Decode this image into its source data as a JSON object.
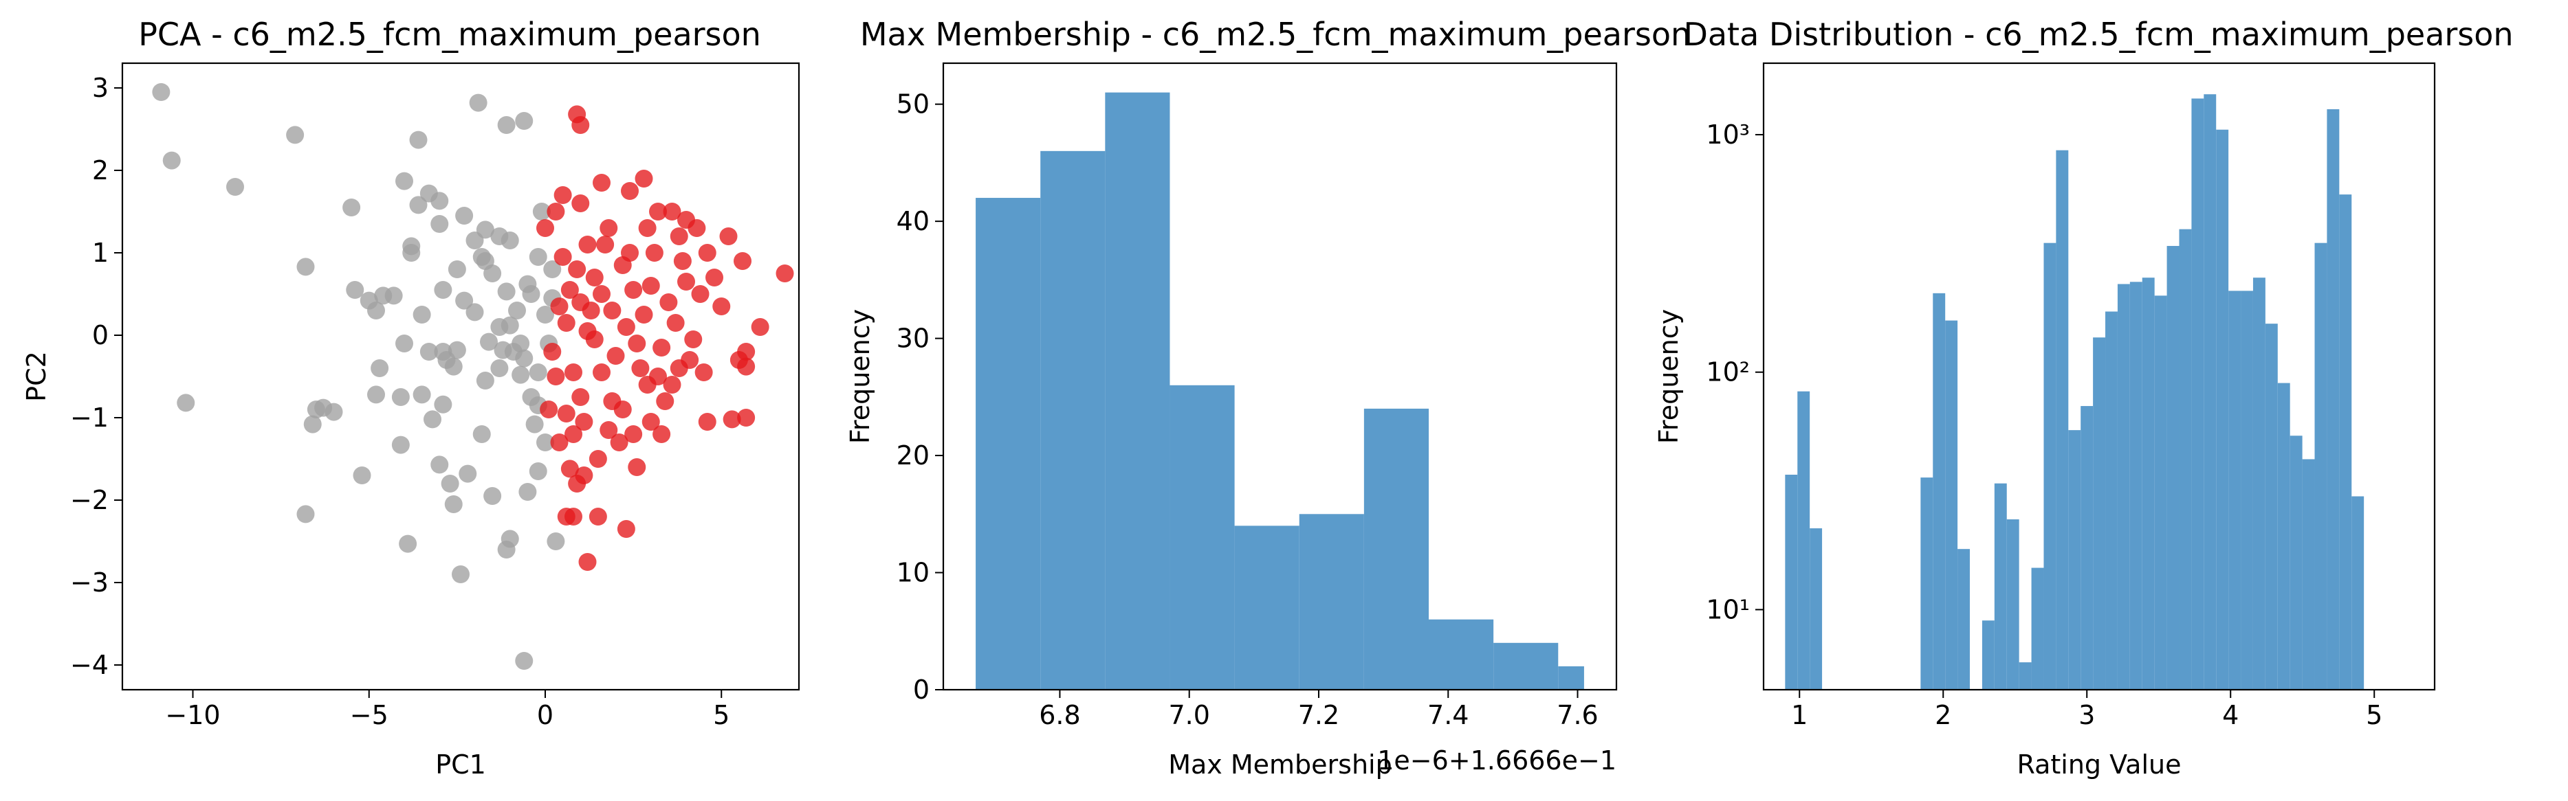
{
  "chart_data": [
    {
      "type": "scatter",
      "title": "PCA - c6_m2.5_fcm_maximum_pearson",
      "xlabel": "PC1",
      "ylabel": "PC2",
      "xlim": [
        -12,
        7.2
      ],
      "ylim": [
        -4.3,
        3.3
      ],
      "xticks": [
        -10,
        -5,
        0,
        5
      ],
      "yticks": [
        -4,
        -3,
        -2,
        -1,
        0,
        1,
        2,
        3
      ],
      "xtick_labels": [
        "−10",
        "−5",
        "0",
        "5"
      ],
      "ytick_labels": [
        "−4",
        "−3",
        "−2",
        "−1",
        "0",
        "1",
        "2",
        "3"
      ],
      "colors": {
        "gray": "#a0a0a0",
        "red": "#e41a1c"
      },
      "series": [
        {
          "color": "gray",
          "points": [
            [
              -10.9,
              2.95
            ],
            [
              -10.6,
              2.12
            ],
            [
              -8.8,
              1.8
            ],
            [
              -7.1,
              2.43
            ],
            [
              -10.2,
              -0.82
            ],
            [
              -6.8,
              0.83
            ],
            [
              -6.6,
              -1.08
            ],
            [
              -6.5,
              -0.9
            ],
            [
              -6.3,
              -0.88
            ],
            [
              -6.0,
              -0.93
            ],
            [
              -6.8,
              -2.17
            ],
            [
              -5.2,
              -1.7
            ],
            [
              -5.5,
              1.55
            ],
            [
              -5.4,
              0.55
            ],
            [
              -5.0,
              0.42
            ],
            [
              -4.8,
              0.3
            ],
            [
              -4.6,
              0.48
            ],
            [
              -4.3,
              0.48
            ],
            [
              -4.7,
              -0.4
            ],
            [
              -4.8,
              -0.72
            ],
            [
              -4.0,
              -0.1
            ],
            [
              -4.1,
              -0.75
            ],
            [
              -4.0,
              1.87
            ],
            [
              -3.8,
              1.08
            ],
            [
              -3.8,
              1.0
            ],
            [
              -3.6,
              1.58
            ],
            [
              -3.6,
              2.37
            ],
            [
              -3.5,
              -0.72
            ],
            [
              -3.5,
              0.25
            ],
            [
              -3.3,
              -0.2
            ],
            [
              -4.1,
              -1.33
            ],
            [
              -3.9,
              -2.53
            ],
            [
              -3.3,
              1.72
            ],
            [
              -3.2,
              -1.02
            ],
            [
              -3.0,
              -1.57
            ],
            [
              -3.0,
              1.35
            ],
            [
              -3.0,
              1.63
            ],
            [
              -2.9,
              -0.2
            ],
            [
              -2.9,
              -0.84
            ],
            [
              -2.9,
              0.55
            ],
            [
              -2.8,
              -0.3
            ],
            [
              -2.7,
              -1.8
            ],
            [
              -2.6,
              -2.05
            ],
            [
              -2.6,
              -0.38
            ],
            [
              -2.5,
              0.8
            ],
            [
              -2.5,
              -0.18
            ],
            [
              -2.4,
              -2.9
            ],
            [
              -2.3,
              0.42
            ],
            [
              -2.3,
              1.45
            ],
            [
              -2.2,
              -1.68
            ],
            [
              -2.0,
              0.28
            ],
            [
              -2.0,
              1.15
            ],
            [
              -1.9,
              2.82
            ],
            [
              -1.8,
              -1.2
            ],
            [
              -1.8,
              0.95
            ],
            [
              -1.7,
              -0.55
            ],
            [
              -1.7,
              0.9
            ],
            [
              -1.7,
              1.28
            ],
            [
              -1.6,
              -0.08
            ],
            [
              -1.5,
              -1.95
            ],
            [
              -1.5,
              0.75
            ],
            [
              -1.3,
              1.2
            ],
            [
              -1.3,
              0.1
            ],
            [
              -1.3,
              -0.4
            ],
            [
              -1.2,
              -0.18
            ],
            [
              -1.1,
              -2.6
            ],
            [
              -1.1,
              0.53
            ],
            [
              -1.1,
              2.55
            ],
            [
              -1.0,
              -2.47
            ],
            [
              -1.0,
              0.12
            ],
            [
              -1.0,
              1.15
            ],
            [
              -0.9,
              -0.2
            ],
            [
              -0.8,
              0.3
            ],
            [
              -0.7,
              -0.1
            ],
            [
              -0.7,
              -0.48
            ],
            [
              -0.6,
              2.6
            ],
            [
              -0.6,
              -3.95
            ],
            [
              -0.6,
              -0.28
            ],
            [
              -0.5,
              -1.9
            ],
            [
              -0.5,
              0.62
            ],
            [
              -0.4,
              -0.75
            ],
            [
              -0.4,
              0.5
            ],
            [
              -0.3,
              -1.08
            ],
            [
              -0.2,
              -1.65
            ],
            [
              -0.2,
              -0.85
            ],
            [
              -0.2,
              0.95
            ],
            [
              -0.1,
              1.5
            ],
            [
              0.0,
              -1.3
            ],
            [
              0.1,
              -0.1
            ],
            [
              0.2,
              0.45
            ],
            [
              0.3,
              -2.5
            ],
            [
              0.2,
              0.8
            ],
            [
              -0.2,
              -0.45
            ],
            [
              0.0,
              0.25
            ]
          ]
        },
        {
          "color": "red",
          "points": [
            [
              0.9,
              2.68
            ],
            [
              1.0,
              2.55
            ],
            [
              0.3,
              1.5
            ],
            [
              0.0,
              1.3
            ],
            [
              0.5,
              1.7
            ],
            [
              1.0,
              1.6
            ],
            [
              1.6,
              1.85
            ],
            [
              2.4,
              1.75
            ],
            [
              2.8,
              1.9
            ],
            [
              3.2,
              1.5
            ],
            [
              3.6,
              1.5
            ],
            [
              4.0,
              1.4
            ],
            [
              4.3,
              1.3
            ],
            [
              4.6,
              1.0
            ],
            [
              5.2,
              1.2
            ],
            [
              5.6,
              0.9
            ],
            [
              6.8,
              0.75
            ],
            [
              6.1,
              0.1
            ],
            [
              5.7,
              -0.2
            ],
            [
              5.0,
              0.35
            ],
            [
              5.5,
              -0.3
            ],
            [
              5.7,
              -0.38
            ],
            [
              4.5,
              -0.45
            ],
            [
              5.3,
              -1.02
            ],
            [
              4.6,
              -1.05
            ],
            [
              5.7,
              -1.0
            ],
            [
              3.8,
              -0.4
            ],
            [
              3.4,
              -0.8
            ],
            [
              3.3,
              -1.2
            ],
            [
              3.0,
              -1.05
            ],
            [
              2.9,
              -0.6
            ],
            [
              2.5,
              -1.2
            ],
            [
              2.3,
              -2.35
            ],
            [
              2.2,
              -0.9
            ],
            [
              2.1,
              -1.3
            ],
            [
              1.8,
              -1.15
            ],
            [
              1.5,
              -1.5
            ],
            [
              1.4,
              -0.05
            ],
            [
              1.3,
              0.3
            ],
            [
              1.0,
              -0.75
            ],
            [
              0.8,
              -1.2
            ],
            [
              0.7,
              -1.62
            ],
            [
              0.9,
              -1.8
            ],
            [
              1.1,
              -1.7
            ],
            [
              0.8,
              -2.2
            ],
            [
              0.6,
              -2.2
            ],
            [
              1.2,
              -2.75
            ],
            [
              0.4,
              -1.3
            ],
            [
              0.1,
              -0.9
            ],
            [
              0.2,
              -0.2
            ],
            [
              0.4,
              0.35
            ],
            [
              0.5,
              0.95
            ],
            [
              0.6,
              0.15
            ],
            [
              0.8,
              -0.45
            ],
            [
              1.0,
              0.4
            ],
            [
              1.2,
              1.1
            ],
            [
              1.4,
              0.7
            ],
            [
              1.6,
              0.5
            ],
            [
              1.7,
              1.1
            ],
            [
              1.9,
              0.3
            ],
            [
              2.0,
              -0.25
            ],
            [
              2.2,
              0.85
            ],
            [
              2.4,
              1.0
            ],
            [
              2.5,
              0.55
            ],
            [
              2.6,
              -0.1
            ],
            [
              2.8,
              0.25
            ],
            [
              3.0,
              0.6
            ],
            [
              3.1,
              1.0
            ],
            [
              3.3,
              -0.15
            ],
            [
              3.5,
              0.4
            ],
            [
              3.7,
              0.15
            ],
            [
              3.9,
              0.9
            ],
            [
              4.0,
              0.65
            ],
            [
              4.2,
              -0.05
            ],
            [
              4.4,
              0.5
            ],
            [
              3.6,
              -0.6
            ],
            [
              2.7,
              -0.4
            ],
            [
              1.6,
              -0.45
            ],
            [
              1.2,
              0.05
            ],
            [
              0.9,
              0.8
            ],
            [
              0.3,
              -0.5
            ],
            [
              0.6,
              -0.95
            ],
            [
              1.1,
              -1.05
            ],
            [
              1.9,
              -0.8
            ],
            [
              2.6,
              -1.6
            ],
            [
              1.5,
              -2.2
            ],
            [
              3.2,
              -0.5
            ],
            [
              4.1,
              -0.3
            ],
            [
              2.3,
              0.1
            ],
            [
              1.8,
              1.3
            ],
            [
              0.7,
              0.55
            ],
            [
              2.9,
              1.3
            ],
            [
              4.8,
              0.7
            ],
            [
              3.8,
              1.2
            ]
          ]
        }
      ]
    },
    {
      "type": "bar",
      "title": "Max Membership - c6_m2.5_fcm_maximum_pearson",
      "xlabel": "Max Membership",
      "ylabel": "Frequency",
      "offset_text": "1e−6+1.6666e−1",
      "xlim": [
        6.62,
        7.66
      ],
      "ylim": [
        0,
        53.5
      ],
      "xticks": [
        6.8,
        7.0,
        7.2,
        7.4,
        7.6
      ],
      "yticks": [
        0,
        10,
        20,
        30,
        40,
        50
      ],
      "xtick_labels": [
        "6.8",
        "7.0",
        "7.2",
        "7.4",
        "7.6"
      ],
      "ytick_labels": [
        "0",
        "10",
        "20",
        "30",
        "40",
        "50"
      ],
      "bar_color": "#5b9bcb",
      "bin_edges": [
        6.67,
        6.77,
        6.87,
        6.97,
        7.07,
        7.17,
        7.27,
        7.37,
        7.47,
        7.57,
        7.61
      ],
      "values": [
        42,
        46,
        51,
        26,
        14,
        15,
        24,
        6,
        4,
        2
      ]
    },
    {
      "type": "bar",
      "title": "Data Distribution - c6_m2.5_fcm_maximum_pearson",
      "xlabel": "Rating Value",
      "ylabel": "Frequency",
      "yscale": "log",
      "xlim": [
        0.75,
        5.42
      ],
      "ylim": [
        4.6,
        2000
      ],
      "xticks": [
        1,
        2,
        3,
        4,
        5
      ],
      "xtick_labels": [
        "1",
        "2",
        "3",
        "4",
        "5"
      ],
      "yticks": [
        10,
        100,
        1000
      ],
      "ytick_labels": [
        "10¹",
        "10²",
        "10³"
      ],
      "bar_color": "#5b9bcb",
      "bin_start": 0.9,
      "bin_width": 0.0857,
      "values": [
        37,
        83,
        22,
        0,
        0,
        0,
        0,
        0,
        0,
        0,
        0,
        36,
        215,
        165,
        18,
        0,
        9,
        34,
        24,
        6,
        15,
        350,
        860,
        57,
        72,
        140,
        180,
        235,
        240,
        250,
        210,
        340,
        400,
        1420,
        1480,
        1050,
        220,
        220,
        250,
        160,
        90,
        54,
        43,
        350,
        1280,
        560,
        30
      ]
    }
  ]
}
